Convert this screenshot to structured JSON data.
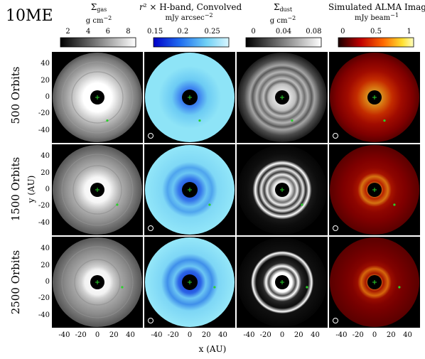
{
  "figure": {
    "model_label": "10ME",
    "columns": [
      {
        "id": "gas",
        "title_main": "Σ",
        "title_sub": "gas",
        "title_rest": "",
        "unit": "g cm",
        "unit_sup": "−2",
        "ticks": [
          "2",
          "4",
          "6",
          "8"
        ],
        "cmap": "gray"
      },
      {
        "id": "hband",
        "title_main": "r",
        "title_sub": "",
        "title_rest": "² × H-band, Convolved",
        "unit": "mJy arcsec",
        "unit_sup": "−2",
        "ticks": [
          "0.15",
          "0.2",
          "0.25"
        ],
        "cmap": "blue"
      },
      {
        "id": "dust",
        "title_main": "Σ",
        "title_sub": "dust",
        "title_rest": "",
        "unit": "g cm",
        "unit_sup": "−2",
        "ticks": [
          "0",
          "0.04",
          "0.08"
        ],
        "cmap": "gray"
      },
      {
        "id": "alma",
        "title_main": "Simulated ALMA Image",
        "title_sub": "",
        "title_rest": "",
        "unit": "mJy beam",
        "unit_sup": "−1",
        "ticks": [
          "0",
          "0.5",
          "1"
        ],
        "cmap": "hot"
      }
    ],
    "rows": [
      {
        "label": "500 Orbits"
      },
      {
        "label": "1500 Orbits"
      },
      {
        "label": "2500 Orbits"
      }
    ],
    "y_axis_label": "y (AU)",
    "x_axis_label": "x (AU)",
    "axis_ticks": [
      "-40",
      "-20",
      "0",
      "20",
      "40"
    ],
    "axis_tick_values": [
      -40,
      -20,
      0,
      20,
      40
    ],
    "axis_range": [
      -55,
      55
    ],
    "colors": {
      "planet_marker": "#2bd12b",
      "grid_line": "#ffffff",
      "center_hole": "#000000"
    }
  }
}
